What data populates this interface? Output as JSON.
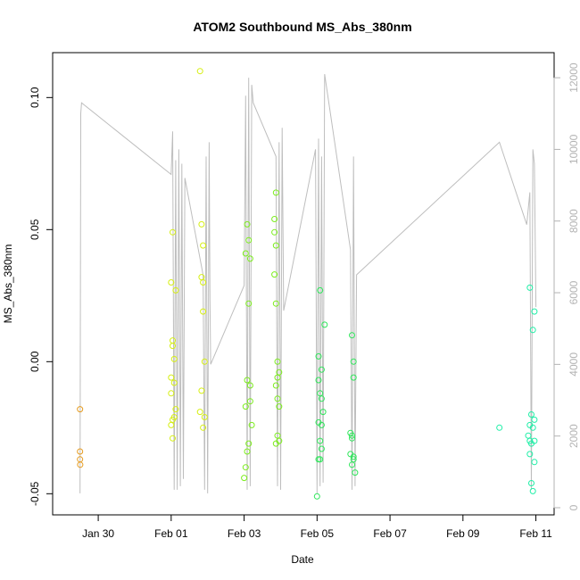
{
  "chart_data": {
    "type": "scatter",
    "title": "ATOM2 Southbound MS_Abs_380nm",
    "xlabel": "Date",
    "ylabel": "MS_Abs_380nm",
    "x_axis": {
      "type": "date",
      "range": [
        "2024-01-28T18:00",
        "2024-02-11T12:00"
      ],
      "ticks": [
        {
          "label": "Jan 30",
          "value": "2024-01-30"
        },
        {
          "label": "Feb 01",
          "value": "2024-02-01"
        },
        {
          "label": "Feb 03",
          "value": "2024-02-03"
        },
        {
          "label": "Feb 05",
          "value": "2024-02-05"
        },
        {
          "label": "Feb 07",
          "value": "2024-02-07"
        },
        {
          "label": "Feb 09",
          "value": "2024-02-09"
        },
        {
          "label": "Feb 11",
          "value": "2024-02-11"
        }
      ]
    },
    "y_left": {
      "range": [
        -0.058,
        0.117
      ],
      "ticks": [
        {
          "label": "-0.05",
          "value": -0.05
        },
        {
          "label": "0.00",
          "value": 0.0
        },
        {
          "label": "0.05",
          "value": 0.05
        },
        {
          "label": "0.10",
          "value": 0.1
        }
      ]
    },
    "y_right": {
      "range": [
        -200,
        12700
      ],
      "color": "#b3b3b3",
      "ticks": [
        {
          "label": "0",
          "value": 0
        },
        {
          "label": "2000",
          "value": 2000
        },
        {
          "label": "4000",
          "value": 4000
        },
        {
          "label": "6000",
          "value": 6000
        },
        {
          "label": "8000",
          "value": 8000
        },
        {
          "label": "10000",
          "value": 10000
        },
        {
          "label": "12000",
          "value": 12000
        }
      ]
    },
    "grid": false,
    "line_color": "#bebebe",
    "line_series": [
      [
        "2024-01-29T12:00",
        400
      ],
      [
        "2024-01-29T12:30",
        11000
      ],
      [
        "2024-01-29T13:00",
        11300
      ],
      [
        "2024-02-01T00:00",
        9300
      ],
      [
        "2024-02-01T01:00",
        10500
      ],
      [
        "2024-02-01T02:00",
        500
      ],
      [
        "2024-02-01T03:00",
        9700
      ],
      [
        "2024-02-01T04:00",
        500
      ],
      [
        "2024-02-01T05:00",
        10000
      ],
      [
        "2024-02-01T06:00",
        600
      ],
      [
        "2024-02-01T07:00",
        9600
      ],
      [
        "2024-02-01T08:00",
        800
      ],
      [
        "2024-02-01T09:00",
        9200
      ],
      [
        "2024-02-01T21:00",
        6500
      ],
      [
        "2024-02-01T22:00",
        500
      ],
      [
        "2024-02-01T23:00",
        9800
      ],
      [
        "2024-02-02T00:00",
        400
      ],
      [
        "2024-02-02T01:00",
        10200
      ],
      [
        "2024-02-02T01:30",
        5800
      ],
      [
        "2024-02-02T02:00",
        4000
      ],
      [
        "2024-02-03T00:00",
        6200
      ],
      [
        "2024-02-03T01:00",
        11500
      ],
      [
        "2024-02-03T02:00",
        500
      ],
      [
        "2024-02-03T03:00",
        12000
      ],
      [
        "2024-02-03T04:00",
        600
      ],
      [
        "2024-02-03T05:00",
        11800
      ],
      [
        "2024-02-03T06:00",
        11300
      ],
      [
        "2024-02-03T21:00",
        9800
      ],
      [
        "2024-02-03T22:00",
        600
      ],
      [
        "2024-02-03T23:00",
        10200
      ],
      [
        "2024-02-04T00:00",
        500
      ],
      [
        "2024-02-04T01:00",
        10600
      ],
      [
        "2024-02-04T02:00",
        5500
      ],
      [
        "2024-02-04T23:00",
        10000
      ],
      [
        "2024-02-05T00:00",
        400
      ],
      [
        "2024-02-05T01:00",
        10300
      ],
      [
        "2024-02-05T02:00",
        600
      ],
      [
        "2024-02-05T03:00",
        9800
      ],
      [
        "2024-02-05T04:00",
        700
      ],
      [
        "2024-02-05T05:00",
        12100
      ],
      [
        "2024-02-05T22:00",
        7200
      ],
      [
        "2024-02-05T23:00",
        500
      ],
      [
        "2024-02-06T00:00",
        9800
      ],
      [
        "2024-02-06T01:00",
        600
      ],
      [
        "2024-02-06T02:00",
        6500
      ],
      [
        "2024-02-10T00:00",
        10200
      ],
      [
        "2024-02-10T18:00",
        7900
      ],
      [
        "2024-02-10T20:00",
        8800
      ],
      [
        "2024-02-10T21:00",
        500
      ],
      [
        "2024-02-10T22:00",
        10000
      ],
      [
        "2024-02-10T23:00",
        9600
      ],
      [
        "2024-02-11T00:00",
        5600
      ]
    ],
    "points_series": [
      {
        "color": "#e69b1f",
        "points": [
          [
            "2024-01-29T12:00",
            -0.018
          ],
          [
            "2024-01-29T12:00",
            -0.034
          ],
          [
            "2024-01-29T12:00",
            -0.037
          ],
          [
            "2024-01-29T12:10",
            -0.039
          ]
        ]
      },
      {
        "color": "#d6ef12",
        "points": [
          [
            "2024-02-01T00:00",
            0.03
          ],
          [
            "2024-02-01T01:00",
            0.049
          ],
          [
            "2024-02-01T03:00",
            0.027
          ],
          [
            "2024-02-01T01:00",
            0.008
          ],
          [
            "2024-02-01T01:00",
            0.006
          ],
          [
            "2024-02-01T02:00",
            0.001
          ],
          [
            "2024-02-01T00:00",
            -0.006
          ],
          [
            "2024-02-01T02:00",
            -0.008
          ],
          [
            "2024-02-01T00:00",
            -0.012
          ],
          [
            "2024-02-01T03:00",
            -0.018
          ],
          [
            "2024-02-01T01:00",
            -0.022
          ],
          [
            "2024-02-01T00:00",
            -0.024
          ],
          [
            "2024-02-01T01:00",
            -0.029
          ],
          [
            "2024-02-01T02:00",
            -0.021
          ],
          [
            "2024-02-01T19:00",
            0.11
          ],
          [
            "2024-02-01T20:00",
            0.052
          ],
          [
            "2024-02-01T21:00",
            0.044
          ],
          [
            "2024-02-01T20:00",
            0.032
          ],
          [
            "2024-02-01T21:00",
            0.03
          ],
          [
            "2024-02-01T21:00",
            0.019
          ],
          [
            "2024-02-01T22:00",
            0.0
          ],
          [
            "2024-02-01T20:00",
            -0.011
          ],
          [
            "2024-02-01T19:00",
            -0.019
          ],
          [
            "2024-02-01T22:00",
            -0.021
          ],
          [
            "2024-02-01T21:00",
            -0.025
          ]
        ]
      },
      {
        "color": "#7ced1d",
        "points": [
          [
            "2024-02-03T02:00",
            0.052
          ],
          [
            "2024-02-03T03:00",
            0.046
          ],
          [
            "2024-02-03T01:00",
            0.041
          ],
          [
            "2024-02-03T04:00",
            0.039
          ],
          [
            "2024-02-03T03:00",
            0.022
          ],
          [
            "2024-02-03T02:00",
            -0.007
          ],
          [
            "2024-02-03T04:00",
            -0.009
          ],
          [
            "2024-02-03T01:00",
            -0.017
          ],
          [
            "2024-02-03T05:00",
            -0.024
          ],
          [
            "2024-02-03T03:00",
            -0.031
          ],
          [
            "2024-02-03T02:00",
            -0.034
          ],
          [
            "2024-02-03T01:00",
            -0.04
          ],
          [
            "2024-02-03T00:00",
            -0.044
          ],
          [
            "2024-02-03T04:00",
            -0.015
          ],
          [
            "2024-02-03T21:00",
            0.064
          ],
          [
            "2024-02-03T20:00",
            0.054
          ],
          [
            "2024-02-03T20:00",
            0.049
          ],
          [
            "2024-02-03T21:00",
            0.044
          ],
          [
            "2024-02-03T20:00",
            0.033
          ],
          [
            "2024-02-03T21:00",
            0.022
          ],
          [
            "2024-02-03T22:00",
            0.0
          ],
          [
            "2024-02-03T23:00",
            -0.004
          ],
          [
            "2024-02-03T22:00",
            -0.006
          ],
          [
            "2024-02-03T21:00",
            -0.009
          ],
          [
            "2024-02-03T22:00",
            -0.014
          ],
          [
            "2024-02-03T23:00",
            -0.017
          ],
          [
            "2024-02-03T22:00",
            -0.028
          ],
          [
            "2024-02-03T23:00",
            -0.03
          ],
          [
            "2024-02-03T21:00",
            -0.031
          ]
        ]
      },
      {
        "color": "#2ee65a",
        "points": [
          [
            "2024-02-05T02:00",
            0.027
          ],
          [
            "2024-02-05T05:00",
            0.014
          ],
          [
            "2024-02-05T01:00",
            0.002
          ],
          [
            "2024-02-05T03:00",
            -0.003
          ],
          [
            "2024-02-05T01:00",
            -0.007
          ],
          [
            "2024-02-05T02:00",
            -0.012
          ],
          [
            "2024-02-05T03:00",
            -0.014
          ],
          [
            "2024-02-05T04:00",
            -0.019
          ],
          [
            "2024-02-05T01:00",
            -0.023
          ],
          [
            "2024-02-05T03:00",
            -0.024
          ],
          [
            "2024-02-05T02:00",
            -0.03
          ],
          [
            "2024-02-05T03:00",
            -0.033
          ],
          [
            "2024-02-05T01:00",
            -0.037
          ],
          [
            "2024-02-05T02:00",
            -0.037
          ],
          [
            "2024-02-05T00:00",
            -0.051
          ],
          [
            "2024-02-05T23:00",
            0.01
          ],
          [
            "2024-02-06T00:00",
            0.0
          ],
          [
            "2024-02-06T00:00",
            -0.006
          ],
          [
            "2024-02-05T22:00",
            -0.027
          ],
          [
            "2024-02-05T23:00",
            -0.028
          ],
          [
            "2024-02-05T23:00",
            -0.029
          ],
          [
            "2024-02-05T22:00",
            -0.035
          ],
          [
            "2024-02-06T00:00",
            -0.036
          ],
          [
            "2024-02-06T00:00",
            -0.037
          ],
          [
            "2024-02-05T23:00",
            -0.039
          ],
          [
            "2024-02-06T01:00",
            -0.042
          ]
        ]
      },
      {
        "color": "#1fefa7",
        "points": [
          [
            "2024-02-10T00:00",
            -0.025
          ],
          [
            "2024-02-10T20:00",
            0.028
          ],
          [
            "2024-02-10T23:00",
            0.019
          ],
          [
            "2024-02-10T22:00",
            0.012
          ],
          [
            "2024-02-10T21:00",
            -0.02
          ],
          [
            "2024-02-10T23:00",
            -0.022
          ],
          [
            "2024-02-10T20:00",
            -0.024
          ],
          [
            "2024-02-10T22:00",
            -0.025
          ],
          [
            "2024-02-10T19:00",
            -0.028
          ],
          [
            "2024-02-10T20:00",
            -0.03
          ],
          [
            "2024-02-10T21:00",
            -0.031
          ],
          [
            "2024-02-10T23:00",
            -0.03
          ],
          [
            "2024-02-10T20:00",
            -0.035
          ],
          [
            "2024-02-10T23:00",
            -0.038
          ],
          [
            "2024-02-10T21:00",
            -0.046
          ],
          [
            "2024-02-10T22:00",
            -0.049
          ]
        ]
      }
    ]
  }
}
